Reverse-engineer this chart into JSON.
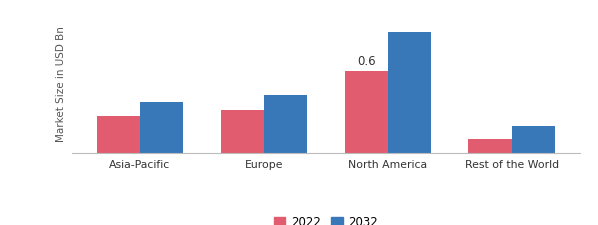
{
  "categories": [
    "Asia-Pacific",
    "Europe",
    "North America",
    "Rest of the World"
  ],
  "values_2022": [
    0.27,
    0.31,
    0.6,
    0.1
  ],
  "values_2032": [
    0.37,
    0.42,
    0.88,
    0.2
  ],
  "color_2022": "#e05c6e",
  "color_2032": "#3878b8",
  "ylabel": "Market Size in USD Bn",
  "annotation_text": "0.6",
  "annotation_bar_index": 2,
  "legend_labels": [
    "2022",
    "2032"
  ],
  "ylim": [
    0,
    1.0
  ],
  "bar_width": 0.35,
  "background_color": "#ffffff",
  "spine_color": "#bbbbbb"
}
